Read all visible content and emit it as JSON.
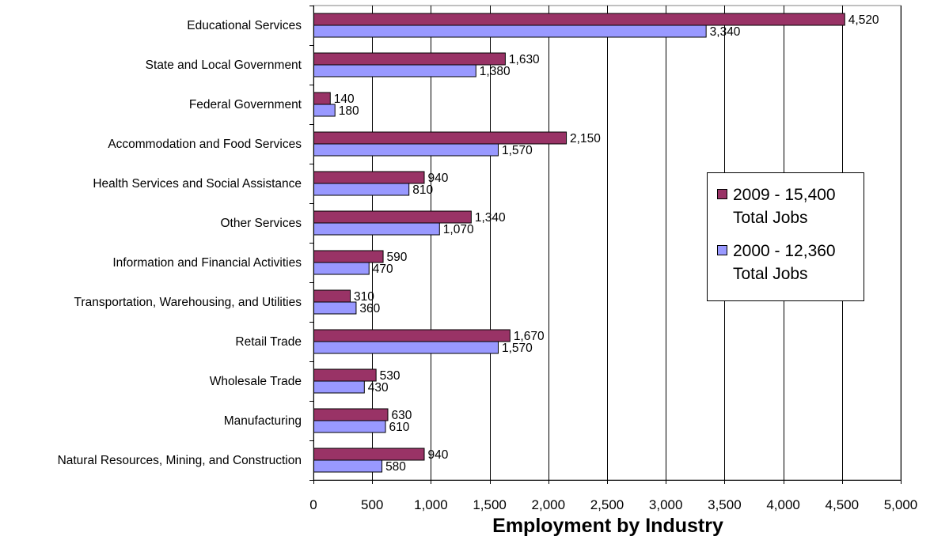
{
  "chart_data": {
    "type": "bar",
    "orientation": "horizontal",
    "title": "",
    "xlabel": "Employment by Industry",
    "ylabel": "",
    "xlim": [
      0,
      5000
    ],
    "x_ticks": [
      0,
      500,
      1000,
      1500,
      2000,
      2500,
      3000,
      3500,
      4000,
      4500,
      5000
    ],
    "x_tick_labels": [
      "0",
      "500",
      "1,000",
      "1,500",
      "2,000",
      "2,500",
      "3,000",
      "3,500",
      "4,000",
      "4,500",
      "5,000"
    ],
    "grid": "vertical",
    "legend_position": "right",
    "categories": [
      "Educational Services",
      "State and Local Government",
      "Federal Government",
      "Accommodation and Food Services",
      "Health Services and Social Assistance",
      "Other Services",
      "Information and Financial Activities",
      "Transportation, Warehousing, and Utilities",
      "Retail Trade",
      "Wholesale Trade",
      "Manufacturing",
      "Natural Resources, Mining, and Construction"
    ],
    "series": [
      {
        "name": "2009 - 15,400 Total Jobs",
        "legend_lines": [
          "2009 - 15,400",
          "Total Jobs"
        ],
        "color": "#993366",
        "values": [
          4520,
          1630,
          140,
          2150,
          940,
          1340,
          590,
          310,
          1670,
          530,
          630,
          940
        ],
        "value_labels": [
          "4,520",
          "1,630",
          "140",
          "2,150",
          "940",
          "1,340",
          "590",
          "310",
          "1,670",
          "530",
          "630",
          "940"
        ]
      },
      {
        "name": "2000 - 12,360 Total Jobs",
        "legend_lines": [
          "2000 - 12,360",
          "Total Jobs"
        ],
        "color": "#9999ff",
        "values": [
          3340,
          1380,
          180,
          1570,
          810,
          1070,
          470,
          360,
          1570,
          430,
          610,
          580
        ],
        "value_labels": [
          "3,340",
          "1,380",
          "180",
          "1,570",
          "810",
          "1,070",
          "470",
          "360",
          "1,570",
          "430",
          "610",
          "580"
        ]
      }
    ]
  }
}
